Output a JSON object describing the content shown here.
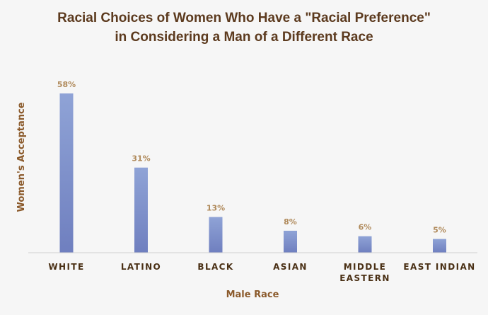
{
  "chart_data": {
    "type": "bar",
    "title": [
      "Racial Choices of Women Who Have a \"Racial Preference\"",
      "in Considering a Man of a Different Race"
    ],
    "xlabel": "Male Race",
    "ylabel": "Women's Acceptance",
    "categories": [
      [
        "WHITE"
      ],
      [
        "LATINO"
      ],
      [
        "BLACK"
      ],
      [
        "ASIAN"
      ],
      [
        "MIDDLE",
        "EASTERN"
      ],
      [
        "EAST INDIAN"
      ]
    ],
    "values": [
      58,
      31,
      13,
      8,
      6,
      5
    ],
    "data_labels": [
      "58%",
      "31%",
      "13%",
      "8%",
      "6%",
      "5%"
    ],
    "ylim": [
      0,
      60
    ],
    "grid": false,
    "colors": {
      "bar_top": "#8fa3d6",
      "bar_bottom": "#6f7fbf",
      "title": "#5c3a1e",
      "axis_line": "#d0d0d0"
    }
  }
}
